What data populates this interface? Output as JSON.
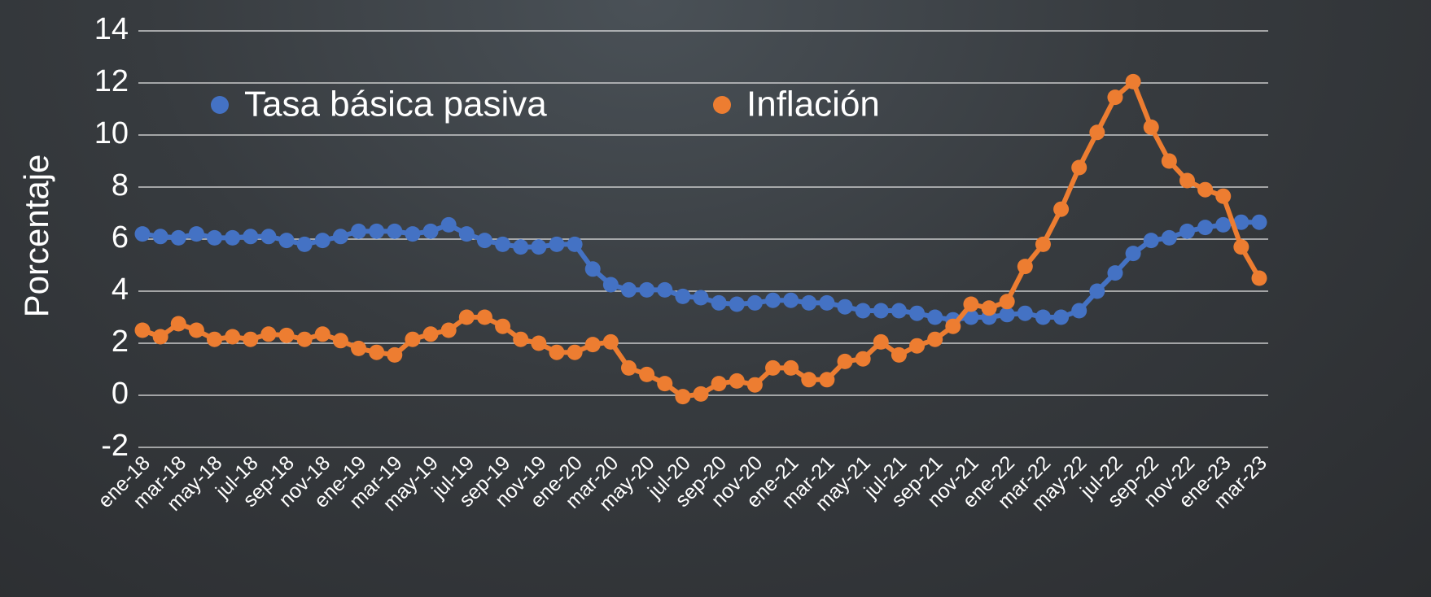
{
  "chart_data": {
    "type": "line",
    "ylabel": "Porcentaje",
    "categories": [
      "ene-18",
      null,
      "mar-18",
      null,
      "may-18",
      null,
      "jul-18",
      null,
      "sep-18",
      null,
      "nov-18",
      null,
      "ene-19",
      null,
      "mar-19",
      null,
      "may-19",
      null,
      "jul-19",
      null,
      "sep-19",
      null,
      "nov-19",
      null,
      "ene-20",
      null,
      "mar-20",
      null,
      "may-20",
      null,
      "jul-20",
      null,
      "sep-20",
      null,
      "nov-20",
      null,
      "ene-21",
      null,
      "mar-21",
      null,
      "may-21",
      null,
      "jul-21",
      null,
      "sep-21",
      null,
      "nov-21",
      null,
      "ene-22",
      null,
      "mar-22",
      null,
      "may-22",
      null,
      "jul-22",
      null,
      "sep-22",
      null,
      "nov-22",
      null,
      "ene-23",
      null,
      "mar-23"
    ],
    "series": [
      {
        "name": "Tasa básica pasiva",
        "color": "#4472c4",
        "values": [
          6.2,
          6.1,
          6.05,
          6.2,
          6.05,
          6.05,
          6.1,
          6.1,
          5.95,
          5.8,
          5.95,
          6.1,
          6.3,
          6.3,
          6.3,
          6.2,
          6.3,
          6.55,
          6.2,
          5.95,
          5.8,
          5.7,
          5.7,
          5.8,
          5.8,
          4.85,
          4.25,
          4.05,
          4.05,
          4.05,
          3.8,
          3.75,
          3.55,
          3.5,
          3.55,
          3.65,
          3.65,
          3.55,
          3.55,
          3.4,
          3.25,
          3.25,
          3.25,
          3.15,
          3.0,
          2.9,
          3.0,
          3.0,
          3.1,
          3.15,
          3.0,
          3.0,
          3.25,
          4.0,
          4.7,
          5.45,
          5.95,
          6.05,
          6.3,
          6.45,
          6.55,
          6.65,
          6.65
        ]
      },
      {
        "name": "Inflación",
        "color": "#ed7d31",
        "values": [
          2.5,
          2.25,
          2.75,
          2.5,
          2.15,
          2.25,
          2.15,
          2.35,
          2.3,
          2.15,
          2.35,
          2.1,
          1.8,
          1.65,
          1.55,
          2.15,
          2.35,
          2.5,
          3.0,
          3.0,
          2.65,
          2.15,
          2.0,
          1.65,
          1.65,
          1.95,
          2.05,
          1.05,
          0.8,
          0.45,
          -0.05,
          0.05,
          0.45,
          0.55,
          0.4,
          1.05,
          1.05,
          0.6,
          0.6,
          1.3,
          1.4,
          2.05,
          1.55,
          1.9,
          2.15,
          2.65,
          3.5,
          3.35,
          3.6,
          4.95,
          5.8,
          7.15,
          8.75,
          10.1,
          11.45,
          12.05,
          10.3,
          9.0,
          8.25,
          7.9,
          7.65,
          5.7,
          4.5
        ]
      }
    ],
    "ylim": [
      -2,
      14
    ],
    "yticks": [
      -2,
      0,
      2,
      4,
      6,
      8,
      10,
      12,
      14
    ],
    "grid": true,
    "legend": "upper left"
  }
}
